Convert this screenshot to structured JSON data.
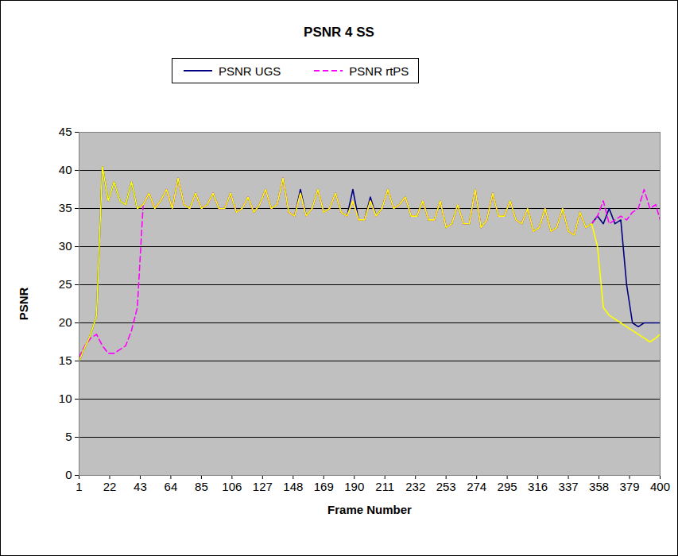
{
  "chart_data": {
    "type": "line",
    "title": "PSNR 4 SS",
    "x_label": "Frame Number",
    "y_label": "PSNR",
    "x": [
      1,
      5,
      9,
      13,
      17,
      21,
      25,
      29,
      33,
      37,
      41,
      45,
      49,
      53,
      57,
      61,
      65,
      69,
      73,
      77,
      81,
      85,
      89,
      93,
      97,
      101,
      105,
      109,
      113,
      117,
      121,
      125,
      129,
      133,
      137,
      141,
      145,
      149,
      153,
      157,
      161,
      165,
      169,
      173,
      177,
      181,
      185,
      189,
      193,
      197,
      201,
      205,
      209,
      213,
      217,
      221,
      225,
      229,
      233,
      237,
      241,
      245,
      249,
      253,
      257,
      261,
      265,
      269,
      273,
      277,
      281,
      285,
      289,
      293,
      297,
      301,
      305,
      309,
      313,
      317,
      321,
      325,
      329,
      333,
      337,
      341,
      345,
      349,
      353,
      357,
      361,
      365,
      369,
      373,
      377,
      381,
      385,
      389,
      393,
      397,
      400
    ],
    "series": [
      {
        "name": "PSNR UGS",
        "color": "#000080",
        "line_style": "solid",
        "values": [
          15,
          16.8,
          18.5,
          21,
          40.5,
          36,
          38.5,
          36,
          35.5,
          38.5,
          35,
          35.5,
          37,
          35,
          36,
          37.5,
          35,
          39,
          35.5,
          35,
          37,
          35,
          35.5,
          37,
          35,
          35,
          37,
          34.5,
          35,
          36.5,
          34.5,
          35.5,
          37.5,
          35,
          35.5,
          39,
          34.5,
          34,
          37.5,
          34,
          35,
          37.5,
          34.5,
          35,
          37,
          34.5,
          34,
          37.5,
          33.5,
          33.5,
          36.5,
          34,
          35,
          37.5,
          35,
          35.5,
          36.5,
          34,
          34,
          36,
          33.5,
          33.5,
          36,
          32.5,
          33,
          35.5,
          33,
          33,
          37.5,
          32.5,
          33.5,
          37,
          34,
          34,
          36,
          33.5,
          33,
          35,
          32,
          32.5,
          35,
          32,
          32.5,
          35,
          32,
          31.5,
          34.5,
          32.5,
          33,
          34,
          33,
          35,
          33,
          33.5,
          25,
          20,
          19.5,
          20,
          20,
          20,
          20
        ]
      },
      {
        "name": "PSNR rtPS",
        "color": "#ff00ff",
        "line_style": "dashed",
        "values": [
          15.5,
          17,
          18,
          18.5,
          17,
          16,
          16,
          16.5,
          17,
          19,
          22,
          35.5,
          37,
          35,
          36,
          37.5,
          35,
          39,
          35.5,
          35,
          37,
          35,
          35.5,
          37,
          35,
          35,
          37,
          34.5,
          35,
          36.5,
          34.5,
          35.5,
          37.5,
          35,
          35.5,
          39,
          34.5,
          34,
          37,
          34,
          35,
          37.5,
          34.5,
          35,
          37,
          34.5,
          34,
          36,
          33.5,
          33.5,
          36,
          34,
          35,
          37.5,
          35,
          35.5,
          36.5,
          34,
          34,
          36,
          33.5,
          33.5,
          36,
          32.5,
          33,
          35.5,
          33,
          33,
          37.5,
          32.5,
          33.5,
          37,
          34,
          34,
          36,
          33.5,
          33,
          35,
          32,
          32.5,
          35,
          32,
          32.5,
          35,
          32,
          31.5,
          34.5,
          32.5,
          33,
          34,
          36,
          33,
          33.5,
          34,
          33.5,
          34.5,
          35,
          37.5,
          35,
          35.5,
          33.5
        ]
      },
      {
        "color": "#ffff00",
        "line_style": "solid",
        "values": [
          15,
          16.8,
          18.5,
          21,
          40.5,
          36,
          38.5,
          36,
          35.5,
          38.5,
          35,
          35.5,
          37,
          35,
          36,
          37.5,
          35,
          39,
          35.5,
          35,
          37,
          35,
          35.5,
          37,
          35,
          35,
          37,
          34.5,
          35,
          36.5,
          34.5,
          35.5,
          37.5,
          35,
          35.5,
          39,
          34.5,
          34,
          37,
          34,
          35,
          37.5,
          34.5,
          35,
          37,
          34.5,
          34,
          36,
          33.5,
          33.5,
          36,
          34,
          35,
          37.5,
          35,
          35.5,
          36.5,
          34,
          34,
          36,
          33.5,
          33.5,
          36,
          32.5,
          33,
          35.5,
          33,
          33,
          37.5,
          32.5,
          33.5,
          37,
          34,
          34,
          36,
          33.5,
          33,
          35,
          32,
          32.5,
          35,
          32,
          32.5,
          35,
          32,
          31.5,
          34.5,
          32.5,
          33,
          30,
          22,
          21,
          20.5,
          20,
          19.5,
          19,
          18.5,
          18,
          17.5,
          18,
          18.5
        ]
      }
    ],
    "xlim": [
      1,
      400
    ],
    "xticks": [
      1,
      22,
      43,
      64,
      85,
      106,
      127,
      148,
      169,
      190,
      211,
      232,
      253,
      274,
      295,
      316,
      337,
      358,
      379,
      400
    ],
    "ylim": [
      0,
      45
    ],
    "yticks": [
      0,
      5,
      10,
      15,
      20,
      25,
      30,
      35,
      40,
      45
    ],
    "grid": true,
    "legend": "top"
  }
}
